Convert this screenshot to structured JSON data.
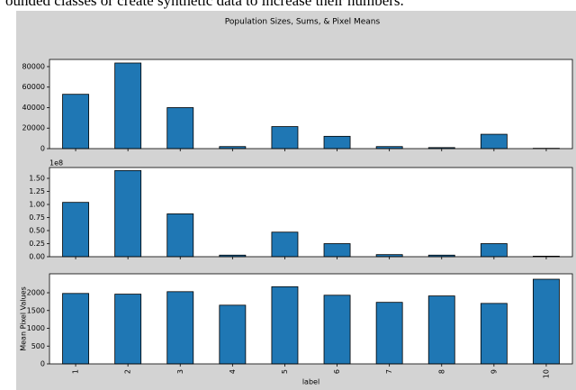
{
  "caption": "ounded classes or create synthetic data to increase their numbers.",
  "figure_title": "Population Sizes, Sums, & Pixel Means",
  "chart_data": [
    {
      "type": "bar",
      "color": "#1f77b4",
      "values": [
        53000,
        83500,
        40000,
        2000,
        21500,
        12000,
        2000,
        1000,
        14000,
        300
      ],
      "ylim": [
        0,
        87000
      ],
      "yticks": [
        0,
        20000,
        40000,
        60000,
        80000
      ]
    },
    {
      "type": "bar",
      "color": "#1f77b4",
      "offset_label": "1e8",
      "values": [
        1.04,
        1.65,
        0.82,
        0.03,
        0.47,
        0.25,
        0.04,
        0.03,
        0.25,
        0.01
      ],
      "ylim": [
        0,
        1.707
      ],
      "yticks": [
        {
          "value": 0,
          "label": "0.00"
        },
        {
          "value": 0.25,
          "label": "0.25"
        },
        {
          "value": 0.5,
          "label": "0.50"
        },
        {
          "value": 0.75,
          "label": "0.75"
        },
        {
          "value": 1,
          "label": "1.00"
        },
        {
          "value": 1.25,
          "label": "1.25"
        },
        {
          "value": 1.5,
          "label": "1.50"
        }
      ]
    },
    {
      "type": "bar",
      "color": "#1f77b4",
      "ylabel": "Mean Pixel Values",
      "xlabel": "label",
      "categories": [
        "1",
        "2",
        "3",
        "4",
        "5",
        "6",
        "7",
        "8",
        "9",
        "10"
      ],
      "values": [
        1980,
        1960,
        2030,
        1650,
        2170,
        1930,
        1730,
        1910,
        1700,
        2380
      ],
      "ylim": [
        0,
        2532
      ],
      "yticks": [
        0,
        500,
        1000,
        1500,
        2000
      ]
    }
  ]
}
